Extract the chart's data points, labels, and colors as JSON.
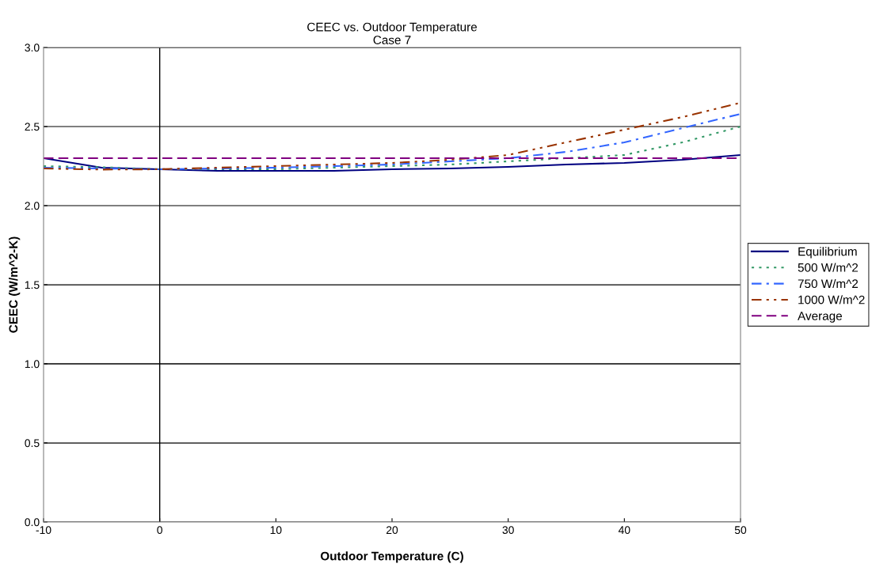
{
  "chart_data": {
    "type": "line",
    "title": "CEEC vs. Outdoor Temperature\nCase 7",
    "xlabel": "Outdoor Temperature (C)",
    "ylabel": "CEEC (W/m^2-K)",
    "x": [
      -10,
      -5,
      0,
      5,
      10,
      15,
      20,
      25,
      30,
      35,
      40,
      45,
      50
    ],
    "xlim": [
      -10,
      50
    ],
    "xticks": [
      -10,
      0,
      10,
      20,
      30,
      40,
      50
    ],
    "ylim": [
      0,
      3
    ],
    "yticks": [
      {
        "value": 0,
        "label": "0.0"
      },
      0.5,
      {
        "value": 1,
        "label": "1.0"
      },
      1.5,
      {
        "value": 2,
        "label": "2.0"
      },
      2.5,
      {
        "value": 3,
        "label": "3.0"
      }
    ],
    "grid": "y",
    "legend": "right",
    "marker": "none",
    "series": [
      {
        "name": "Equilibrium",
        "color": "#000080",
        "line_style": "solid",
        "values": [
          2.3,
          2.24,
          2.23,
          2.22,
          2.22,
          2.22,
          2.23,
          2.235,
          2.245,
          2.26,
          2.27,
          2.29,
          2.32
        ]
      },
      {
        "name": "500 W/m^2",
        "color": "#339966",
        "line_style": "dotted",
        "values": [
          2.25,
          2.243,
          2.23,
          2.23,
          2.23,
          2.24,
          2.25,
          2.26,
          2.28,
          2.3,
          2.32,
          2.4,
          2.5
        ]
      },
      {
        "name": "750 W/m^2",
        "color": "#3366ff",
        "line_style": "dashdot",
        "values": [
          2.24,
          2.235,
          2.23,
          2.235,
          2.24,
          2.25,
          2.26,
          2.28,
          2.3,
          2.34,
          2.4,
          2.49,
          2.58
        ]
      },
      {
        "name": "1000 W/m^2",
        "color": "#993300",
        "line_style": "dashdotdot",
        "values": [
          2.235,
          2.228,
          2.23,
          2.24,
          2.25,
          2.26,
          2.27,
          2.29,
          2.32,
          2.4,
          2.48,
          2.56,
          2.65
        ]
      },
      {
        "name": "Average",
        "color": "#800080",
        "line_style": "dashed",
        "values": [
          2.3,
          2.3,
          2.3,
          2.3,
          2.3,
          2.3,
          2.3,
          2.3,
          2.3,
          2.3,
          2.3,
          2.3,
          2.3
        ]
      }
    ]
  }
}
